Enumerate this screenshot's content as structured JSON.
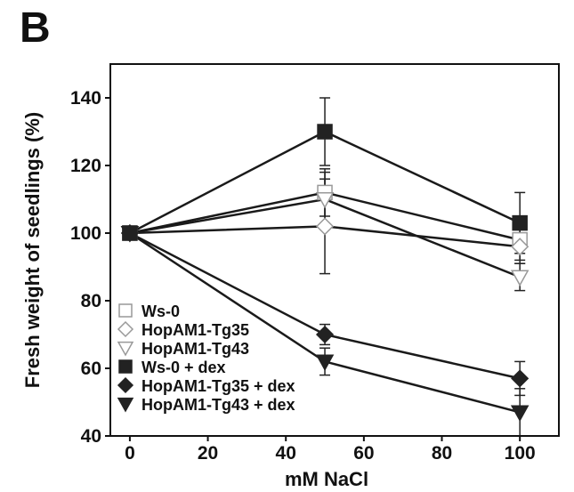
{
  "panel_label": "B",
  "chart_data": {
    "type": "line",
    "xlabel": "mM NaCl",
    "ylabel": "Fresh weight of seedlings (%)",
    "xlim": [
      -5,
      110
    ],
    "ylim": [
      40,
      150
    ],
    "xticks": [
      0,
      20,
      40,
      60,
      80,
      100
    ],
    "yticks": [
      40,
      60,
      80,
      100,
      120,
      140
    ],
    "x": [
      0,
      50,
      100
    ],
    "legend_position": "bottom-left",
    "series": [
      {
        "name": "Ws-0",
        "marker": "square-open",
        "values": [
          100,
          112,
          98
        ],
        "errors": [
          1,
          7,
          6
        ]
      },
      {
        "name": "HopAM1-Tg35",
        "marker": "diamond-open",
        "values": [
          100,
          102,
          96
        ],
        "errors": [
          1,
          14,
          5
        ]
      },
      {
        "name": "HopAM1-Tg43",
        "marker": "triangle-open",
        "values": [
          100,
          110,
          87
        ],
        "errors": [
          1,
          8,
          4
        ]
      },
      {
        "name": "Ws-0 + dex",
        "marker": "square-filled",
        "values": [
          100,
          130,
          103
        ],
        "errors": [
          1,
          10,
          9
        ]
      },
      {
        "name": "HopAM1-Tg35 + dex",
        "marker": "diamond-filled",
        "values": [
          100,
          70,
          57
        ],
        "errors": [
          1,
          3,
          5
        ]
      },
      {
        "name": "HopAM1-Tg43 + dex",
        "marker": "triangle-filled",
        "values": [
          100,
          62,
          47
        ],
        "errors": [
          1,
          4,
          7
        ]
      }
    ]
  }
}
